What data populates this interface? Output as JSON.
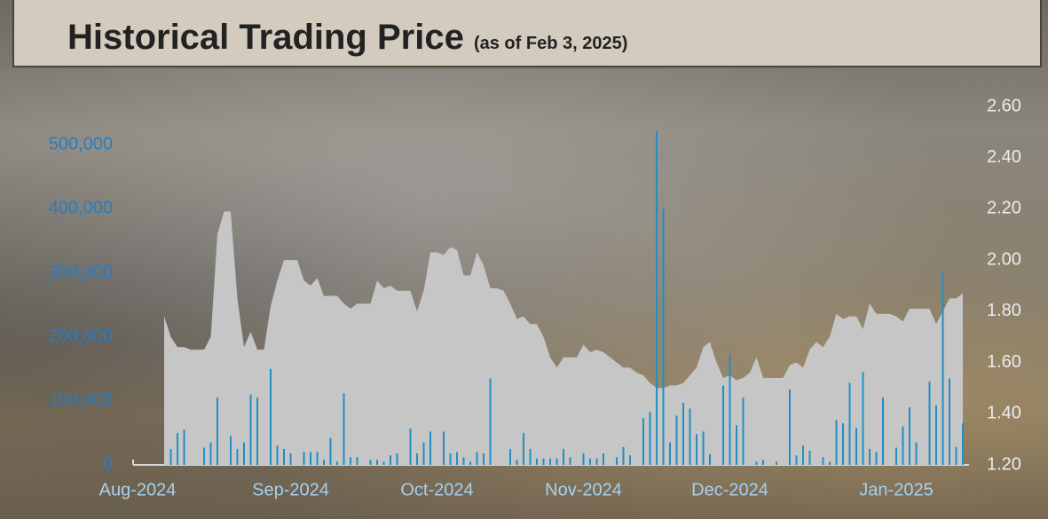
{
  "chart_data": {
    "type": "combo",
    "title": "Historical Trading Price",
    "subtitle": "(as of Feb 3, 2025)",
    "categories": [
      "Aug-2024",
      null,
      null,
      null,
      null,
      null,
      null,
      null,
      null,
      null,
      null,
      null,
      null,
      null,
      null,
      null,
      null,
      null,
      null,
      null,
      null,
      null,
      null,
      "Sep-2024",
      null,
      null,
      null,
      null,
      null,
      null,
      null,
      null,
      null,
      null,
      null,
      null,
      null,
      null,
      null,
      null,
      null,
      null,
      null,
      null,
      null,
      "Oct-2024",
      null,
      null,
      null,
      null,
      null,
      null,
      null,
      null,
      null,
      null,
      null,
      null,
      null,
      null,
      null,
      null,
      null,
      null,
      null,
      null,
      null,
      "Nov-2024",
      null,
      null,
      null,
      null,
      null,
      null,
      null,
      null,
      null,
      null,
      null,
      null,
      null,
      null,
      null,
      null,
      null,
      null,
      null,
      null,
      null,
      "Dec-2024",
      null,
      null,
      null,
      null,
      null,
      null,
      null,
      null,
      null,
      null,
      null,
      null,
      null,
      null,
      null,
      null,
      null,
      null,
      null,
      null,
      null,
      null,
      null,
      null,
      "Jan-2025",
      null,
      null,
      null,
      null,
      null,
      null,
      null,
      null,
      null,
      null
    ],
    "series": [
      {
        "type": "area",
        "axis": "y2",
        "color": "#c6c6c6",
        "values": [
          null,
          null,
          null,
          null,
          1.78,
          1.7,
          1.66,
          1.66,
          1.65,
          1.65,
          1.65,
          1.7,
          2.1,
          2.19,
          2.19,
          1.85,
          1.66,
          1.72,
          1.65,
          1.65,
          1.82,
          1.92,
          2.0,
          2.0,
          2.0,
          1.92,
          1.9,
          1.93,
          1.86,
          1.86,
          1.86,
          1.83,
          1.81,
          1.83,
          1.83,
          1.83,
          1.92,
          1.89,
          1.9,
          1.88,
          1.88,
          1.88,
          1.8,
          1.88,
          2.03,
          2.03,
          2.02,
          2.05,
          2.04,
          1.94,
          1.94,
          2.03,
          1.98,
          1.89,
          1.89,
          1.88,
          1.83,
          1.77,
          1.78,
          1.75,
          1.75,
          1.7,
          1.62,
          1.58,
          1.62,
          1.62,
          1.62,
          1.67,
          1.64,
          1.65,
          1.64,
          1.62,
          1.6,
          1.58,
          1.58,
          1.56,
          1.55,
          1.52,
          1.5,
          1.5,
          1.51,
          1.51,
          1.52,
          1.55,
          1.58,
          1.66,
          1.68,
          1.6,
          1.54,
          1.55,
          1.53,
          1.54,
          1.56,
          1.62,
          1.54,
          1.54,
          1.54,
          1.54,
          1.59,
          1.6,
          1.58,
          1.65,
          1.68,
          1.66,
          1.7,
          1.79,
          1.77,
          1.78,
          1.78,
          1.73,
          1.83,
          1.79,
          1.79,
          1.79,
          1.78,
          1.76,
          1.81,
          1.81,
          1.81,
          1.81,
          1.75,
          1.8,
          1.85,
          1.85,
          1.87
        ]
      },
      {
        "type": "bar",
        "axis": "y",
        "color": "#1f8fc4",
        "values": [
          null,
          null,
          null,
          null,
          0,
          25000,
          50000,
          55000,
          0,
          0,
          27000,
          35000,
          105000,
          0,
          45000,
          25000,
          35000,
          110000,
          105000,
          0,
          150000,
          30000,
          25000,
          18000,
          0,
          20000,
          20000,
          20000,
          8000,
          42000,
          5000,
          112000,
          12000,
          12000,
          0,
          8000,
          8000,
          5000,
          15000,
          18000,
          0,
          57000,
          18000,
          35000,
          52000,
          0,
          52000,
          18000,
          20000,
          12000,
          5000,
          20000,
          18000,
          135000,
          0,
          0,
          25000,
          8000,
          50000,
          25000,
          10000,
          10000,
          10000,
          10000,
          25000,
          12000,
          0,
          18000,
          10000,
          10000,
          18000,
          0,
          12000,
          28000,
          15000,
          0,
          73000,
          83000,
          522000,
          400000,
          35000,
          77000,
          97000,
          88000,
          48000,
          52000,
          17000,
          0,
          124000,
          172000,
          62000,
          105000,
          0,
          5000,
          8000,
          0,
          5000,
          0,
          118000,
          15000,
          30000,
          22000,
          0,
          12000,
          5000,
          70000,
          65000,
          128000,
          58000,
          145000,
          25000,
          20000,
          105000,
          0,
          27000,
          60000,
          90000,
          35000,
          0,
          130000,
          93000,
          300000,
          135000,
          28000,
          65000
        ]
      }
    ],
    "ylim": [
      0,
      560000
    ],
    "yticks": [
      0,
      {
        "value": 100000,
        "label": "100,000"
      },
      {
        "value": 200000,
        "label": "200,000"
      },
      {
        "value": 300000,
        "label": "300,000"
      },
      {
        "value": 400000,
        "label": "400,000"
      },
      {
        "value": 500000,
        "label": "500,000"
      }
    ],
    "y2lim": [
      1.2,
      2.6
    ],
    "y2ticks": [
      {
        "value": 1.2,
        "label": "1.20"
      },
      {
        "value": 1.4,
        "label": "1.40"
      },
      {
        "value": 1.6,
        "label": "1.60"
      },
      {
        "value": 1.8,
        "label": "1.80"
      },
      {
        "value": 2.0,
        "label": "2.00"
      },
      {
        "value": 2.2,
        "label": "2.20"
      },
      {
        "value": 2.4,
        "label": "2.40"
      },
      {
        "value": 2.6,
        "label": "2.60"
      }
    ],
    "grid": false
  }
}
